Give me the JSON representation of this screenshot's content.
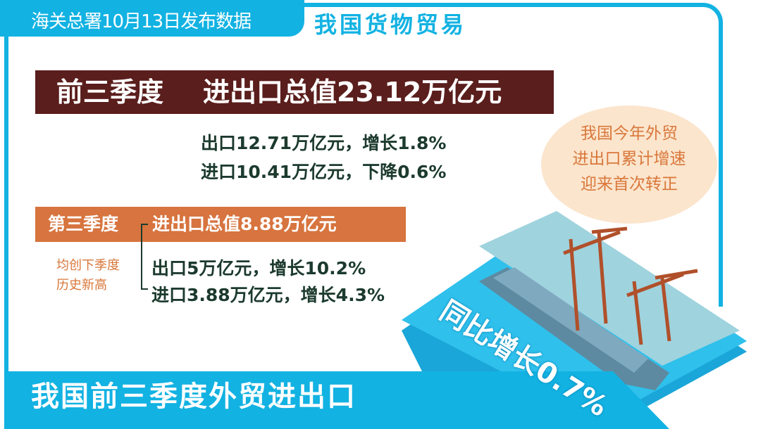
{
  "header": {
    "source": "海关总署10月13日发布数据",
    "title": "我国货物贸易"
  },
  "q1_3": {
    "label": "前三季度",
    "total": "进出口总值23.12万亿元",
    "export": "出口12.71万亿元，增长1.8%",
    "import": "进口10.41万亿元，下降0.6%"
  },
  "callout": {
    "lines": [
      "我国今年外贸",
      "进出口累计增速",
      "迎来首次转正"
    ]
  },
  "q3": {
    "label": "第三季度",
    "total": "进出口总值8.88万亿元",
    "note_lines": [
      "均创下季度",
      "历史新高"
    ],
    "export": "出口5万亿元，增长10.2%",
    "import": "进口3.88万亿元，增长4.3%"
  },
  "footer": {
    "title": "我国前三季度外贸进出口",
    "growth": "同比增长0.7%"
  },
  "colors": {
    "accent_blue": "#12b2e2",
    "banner_brown": "#5a1e1c",
    "banner_orange": "#d7743f",
    "callout_bg": "#fbe5cd",
    "callout_text": "#d9773a"
  }
}
